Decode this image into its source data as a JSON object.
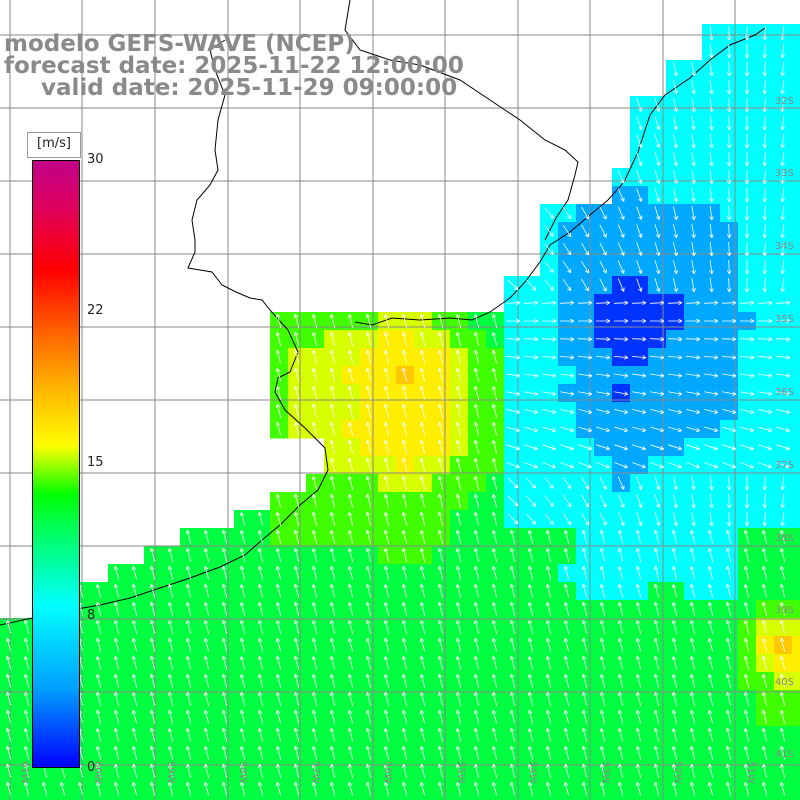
{
  "title": {
    "line1": "modelo GEFS-WAVE (NCEP)",
    "line2": "forecast date: 2025-11-22 12:00:00",
    "line3": "valid date: 2025-11-29 09:00:00"
  },
  "colorbar": {
    "unit": "[m/s]",
    "ticks": [
      "30",
      "22",
      "15",
      "8",
      "0"
    ]
  },
  "lat_labels": [
    "32S",
    "33S",
    "34S",
    "35S",
    "36S",
    "37S",
    "38S",
    "39S",
    "40S",
    "41S"
  ],
  "lon_labels": [
    "61W",
    "60W",
    "59W",
    "58W",
    "57W",
    "56W",
    "55W",
    "54W",
    "53W",
    "52W",
    "51W"
  ],
  "colors": {
    "land": "#ffffff",
    "grid": "#888888",
    "arrows": "#ffffff",
    "coast": "#000000",
    "title": "#8a8a8a"
  }
}
